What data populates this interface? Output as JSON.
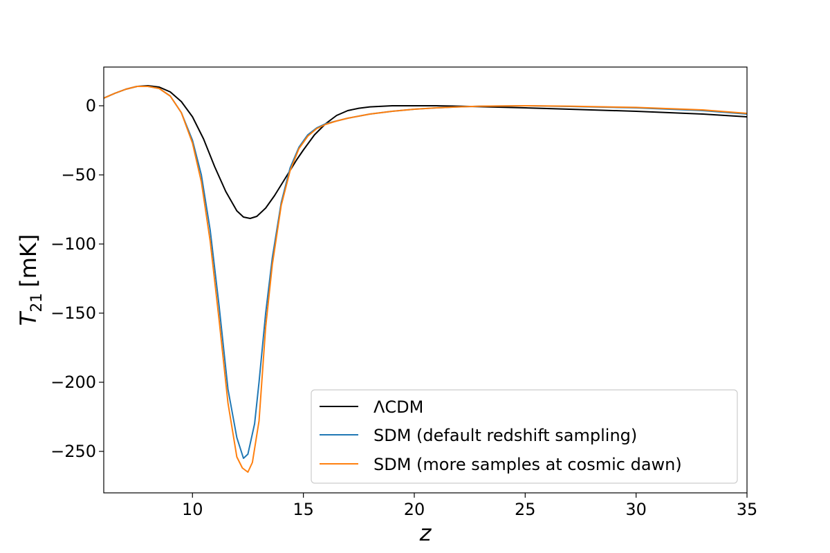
{
  "chart_data": {
    "type": "line",
    "xlabel": "z",
    "ylabel": "T",
    "ylabel_sub": "21",
    "ylabel_unit": "[mK]",
    "xlim": [
      6,
      35
    ],
    "ylim": [
      -280,
      28
    ],
    "xticks": [
      10,
      15,
      20,
      25,
      30,
      35
    ],
    "yticks": [
      0,
      -50,
      -100,
      -150,
      -200,
      -250
    ],
    "ytick_labels": [
      "0",
      "−50",
      "−100",
      "−150",
      "−200",
      "−250"
    ],
    "grid": false,
    "legend_position": "lower-right",
    "series": [
      {
        "name": "ΛCDM",
        "color": "#000000",
        "x": [
          6,
          6.5,
          7,
          7.5,
          8,
          8.5,
          9,
          9.5,
          10,
          10.5,
          11,
          11.5,
          12,
          12.3,
          12.6,
          12.9,
          13.3,
          13.7,
          14.2,
          14.7,
          15,
          15.5,
          16,
          16.5,
          17,
          17.5,
          18,
          19,
          20,
          21,
          22,
          23,
          25,
          27,
          30,
          33,
          35
        ],
        "y": [
          5.5,
          9,
          12,
          14,
          14.5,
          13.5,
          10,
          3,
          -8,
          -24,
          -44,
          -62,
          -76,
          -80.5,
          -81.5,
          -80,
          -74,
          -65,
          -52,
          -39,
          -32,
          -21,
          -13,
          -7,
          -3.5,
          -1.8,
          -0.8,
          0,
          0,
          0,
          -0.3,
          -0.7,
          -1.5,
          -2.5,
          -4,
          -6,
          -8
        ]
      },
      {
        "name": "SDM (default redshift sampling)",
        "color": "#1f77b4",
        "x": [
          6,
          6.5,
          7,
          7.5,
          8,
          8.5,
          9,
          9.5,
          10,
          10.4,
          10.8,
          11.2,
          11.6,
          12,
          12.3,
          12.5,
          12.8,
          13,
          13.3,
          13.6,
          14,
          14.4,
          14.8,
          15.2,
          15.6,
          16,
          16.5,
          17,
          18,
          19,
          20,
          21,
          22,
          23,
          25,
          27,
          30,
          33,
          35
        ],
        "y": [
          5.5,
          9,
          12,
          14,
          14,
          12.5,
          7,
          -5,
          -25,
          -50,
          -90,
          -145,
          -205,
          -240,
          -255,
          -252,
          -230,
          -200,
          -150,
          -110,
          -70,
          -45,
          -30,
          -21,
          -16,
          -13,
          -11,
          -9,
          -6,
          -4,
          -2.5,
          -1.5,
          -0.8,
          -0.3,
          0,
          -0.5,
          -1.5,
          -3.5,
          -6
        ]
      },
      {
        "name": "SDM (more samples at cosmic dawn)",
        "color": "#ff7f0e",
        "x": [
          6,
          6.5,
          7,
          7.5,
          8,
          8.5,
          9,
          9.5,
          10,
          10.4,
          10.8,
          11.2,
          11.6,
          12,
          12.25,
          12.5,
          12.7,
          13,
          13.3,
          13.6,
          14,
          14.4,
          14.8,
          15.2,
          15.6,
          16,
          16.5,
          17,
          18,
          19,
          20,
          21,
          22,
          23,
          25,
          27,
          30,
          33,
          35
        ],
        "y": [
          5.5,
          9,
          12,
          14,
          14,
          12.5,
          7,
          -5,
          -27,
          -55,
          -98,
          -155,
          -215,
          -254,
          -262,
          -265,
          -258,
          -228,
          -160,
          -115,
          -72,
          -47,
          -31,
          -22,
          -16.5,
          -13.5,
          -11,
          -9,
          -6,
          -4,
          -2.5,
          -1.5,
          -0.8,
          -0.3,
          0,
          -0.3,
          -1.2,
          -3,
          -5.5
        ]
      }
    ]
  }
}
